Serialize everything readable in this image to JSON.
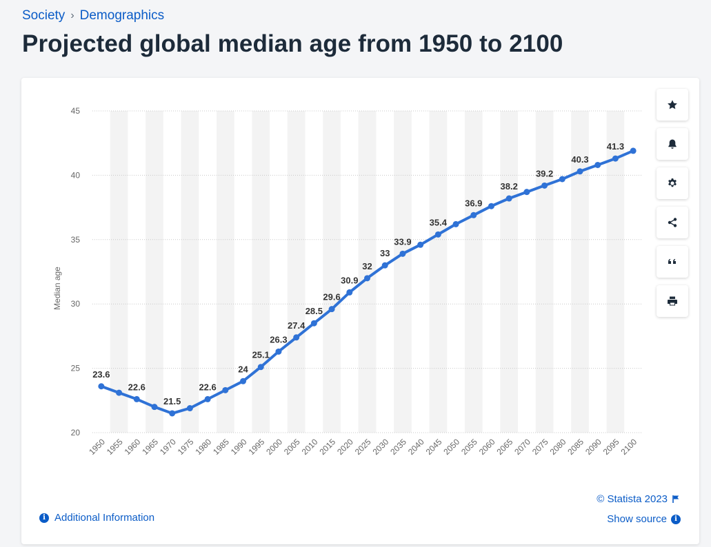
{
  "breadcrumb": {
    "items": [
      "Society",
      "Demographics"
    ],
    "separator": "›"
  },
  "page": {
    "title": "Projected global median age from 1950 to 2100"
  },
  "toolbar": {
    "buttons": [
      {
        "name": "favorite",
        "icon": "star-icon"
      },
      {
        "name": "notification",
        "icon": "bell-icon"
      },
      {
        "name": "settings",
        "icon": "gear-icon"
      },
      {
        "name": "share",
        "icon": "share-icon"
      },
      {
        "name": "cite",
        "icon": "quote-icon"
      },
      {
        "name": "print",
        "icon": "printer-icon"
      }
    ]
  },
  "footer": {
    "credit": "© Statista 2023",
    "show_source": "Show source",
    "additional_info": "Additional Information"
  },
  "colors": {
    "line": "#2f72d6",
    "link": "#0b5cc7",
    "band": "#f3f3f3",
    "grid": "#c8c8c8"
  },
  "chart_data": {
    "type": "line",
    "title": "",
    "xlabel": "",
    "ylabel": "Median age",
    "ylim": [
      20,
      45
    ],
    "yticks": [
      20,
      25,
      30,
      35,
      40,
      45
    ],
    "categories": [
      "1950",
      "1955",
      "1960",
      "1965",
      "1970",
      "1975",
      "1980",
      "1985",
      "1990",
      "1995",
      "2000",
      "2005",
      "2010",
      "2015",
      "2020",
      "2025",
      "2030",
      "2035",
      "2040",
      "2045",
      "2050",
      "2055",
      "2060",
      "2065",
      "2070",
      "2075",
      "2080",
      "2085",
      "2090",
      "2095",
      "2100"
    ],
    "values": [
      23.6,
      23.1,
      22.6,
      22.0,
      21.5,
      21.9,
      22.6,
      23.3,
      24.0,
      25.1,
      26.3,
      27.4,
      28.5,
      29.6,
      30.9,
      32.0,
      33.0,
      33.9,
      34.6,
      35.4,
      36.2,
      36.9,
      37.6,
      38.2,
      38.7,
      39.2,
      39.7,
      40.3,
      40.8,
      41.3,
      41.9
    ],
    "data_labels": [
      {
        "index": 0,
        "text": "23.6"
      },
      {
        "index": 2,
        "text": "22.6"
      },
      {
        "index": 4,
        "text": "21.5"
      },
      {
        "index": 6,
        "text": "22.6"
      },
      {
        "index": 8,
        "text": "24"
      },
      {
        "index": 9,
        "text": "25.1"
      },
      {
        "index": 10,
        "text": "26.3"
      },
      {
        "index": 11,
        "text": "27.4"
      },
      {
        "index": 12,
        "text": "28.5"
      },
      {
        "index": 13,
        "text": "29.6"
      },
      {
        "index": 14,
        "text": "30.9"
      },
      {
        "index": 15,
        "text": "32"
      },
      {
        "index": 16,
        "text": "33"
      },
      {
        "index": 17,
        "text": "33.9"
      },
      {
        "index": 19,
        "text": "35.4"
      },
      {
        "index": 21,
        "text": "36.9"
      },
      {
        "index": 23,
        "text": "38.2"
      },
      {
        "index": 25,
        "text": "39.2"
      },
      {
        "index": 27,
        "text": "40.3"
      },
      {
        "index": 29,
        "text": "41.3"
      }
    ],
    "grid": true,
    "legend": "none"
  }
}
